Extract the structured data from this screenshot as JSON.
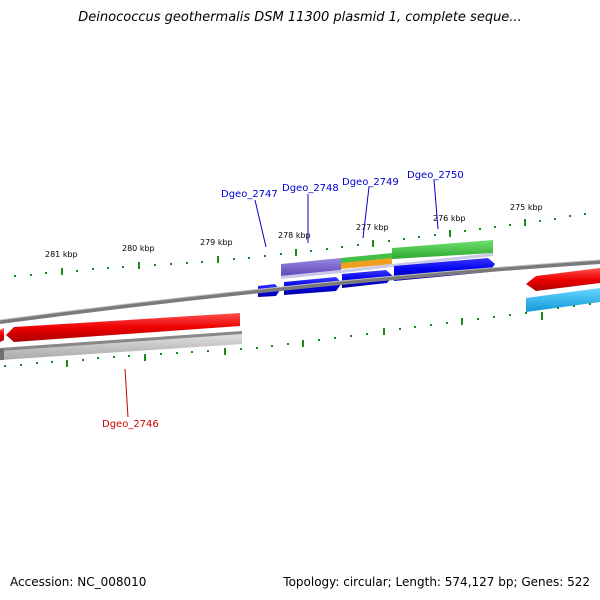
{
  "title": "Deinococcus geothermalis DSM 11300 plasmid 1, complete seque...",
  "footer": {
    "accession": "Accession: NC_008010",
    "topology": "Topology: circular; Length: 574,127 bp; Genes: 522"
  },
  "scale": {
    "unit": "kbp",
    "ticks": [
      "281 kbp",
      "280 kbp",
      "279 kbp",
      "278 kbp",
      "277 kbp",
      "276 kbp",
      "275 kbp"
    ]
  },
  "genes": [
    {
      "name": "Dgeo_2746",
      "strand": "reverse",
      "color": "#cc0000"
    },
    {
      "name": "Dgeo_2747",
      "strand": "forward",
      "color": "#0000cc"
    },
    {
      "name": "Dgeo_2748",
      "strand": "forward",
      "color": "#0000cc"
    },
    {
      "name": "Dgeo_2749",
      "strand": "forward",
      "color": "#0000cc"
    },
    {
      "name": "Dgeo_2750",
      "strand": "forward",
      "color": "#0000cc"
    }
  ],
  "colors": {
    "forward_gene": "#0000ee",
    "reverse_gene": "#ee0000",
    "backbone": "#808080",
    "tick": "#1a8a1a",
    "feature_green": "#44c044",
    "feature_purple": "#7a60cc",
    "feature_orange": "#f0a020",
    "feature_cyan": "#22b8ee"
  }
}
